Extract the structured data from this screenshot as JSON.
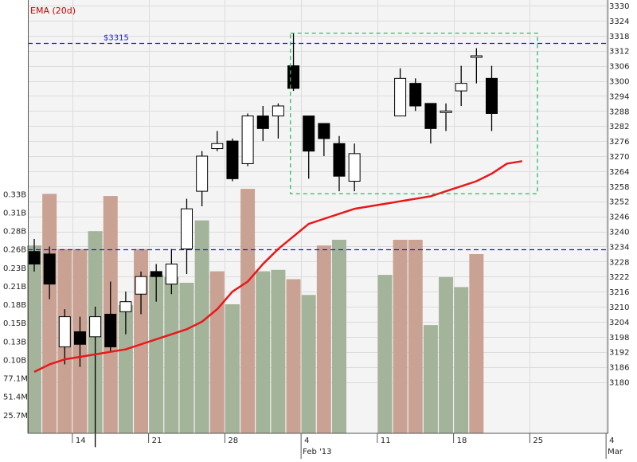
{
  "header": {
    "indicator_label": "EMA (20d)"
  },
  "colors": {
    "background": "#f4f4f4",
    "grid": "#dcdcdc",
    "frame": "#555555",
    "text": "#222222",
    "ema_line": "#e8191b",
    "ema_label": "#cc0000",
    "reference_line": "#1a1ae6",
    "selection_box": "#22c06a",
    "candle_up_fill": "#ffffff",
    "candle_down_fill": "#000000",
    "volume_up": "#a3b49a",
    "volume_down": "#caa293"
  },
  "chart_data": {
    "type": "candlestick",
    "price_axis": {
      "ylim": [
        3174,
        3330
      ],
      "ticks": [
        3180,
        3186,
        3192,
        3198,
        3204,
        3210,
        3216,
        3222,
        3228,
        3234,
        3240,
        3246,
        3252,
        3258,
        3264,
        3270,
        3276,
        3282,
        3288,
        3294,
        3300,
        3306,
        3312,
        3318,
        3324,
        3330
      ]
    },
    "volume_axis": {
      "tick_labels": [
        "25.7M",
        "51.4M",
        "77.1M",
        "0.10B",
        "0.13B",
        "0.15B",
        "0.18B",
        "0.21B",
        "0.23B",
        "0.26B",
        "0.28B",
        "0.31B",
        "0.33B"
      ],
      "tick_values": [
        25.7,
        51.4,
        77.1,
        102.8,
        128.5,
        154.2,
        179.9,
        205.6,
        231.3,
        257.0,
        282.7,
        308.4,
        334.1
      ],
      "unit": "M"
    },
    "x_axis": {
      "tick_labels": [
        "14",
        "21",
        "28",
        "4",
        "11",
        "18",
        "25",
        "4"
      ],
      "tick_slots": [
        3,
        8,
        13,
        18,
        23,
        28,
        33,
        38
      ],
      "period_labels": [
        {
          "text": "Feb '13",
          "slot": 18
        },
        {
          "text": "Mar",
          "slot": 38
        }
      ]
    },
    "series": [
      {
        "name": "EMA (20d)",
        "slot_values": [
          [
            0,
            3184
          ],
          [
            1,
            3187
          ],
          [
            2,
            3189
          ],
          [
            3,
            3190
          ],
          [
            4,
            3191
          ],
          [
            5,
            3192
          ],
          [
            6,
            3193
          ],
          [
            7,
            3195
          ],
          [
            8,
            3197
          ],
          [
            9,
            3199
          ],
          [
            10,
            3201
          ],
          [
            11,
            3204
          ],
          [
            12,
            3209
          ],
          [
            13,
            3216
          ],
          [
            14,
            3220
          ],
          [
            15,
            3227
          ],
          [
            16,
            3233
          ],
          [
            17,
            3238
          ],
          [
            18,
            3243
          ],
          [
            19,
            3245
          ],
          [
            20,
            3247
          ],
          [
            21,
            3249
          ],
          [
            22,
            3250
          ],
          [
            23,
            3251
          ],
          [
            24,
            3252
          ],
          [
            25,
            3253
          ],
          [
            26,
            3254
          ],
          [
            27,
            3256
          ],
          [
            28,
            3258
          ],
          [
            29,
            3260
          ],
          [
            30,
            3263
          ],
          [
            31,
            3267
          ],
          [
            32,
            3268
          ]
        ]
      }
    ],
    "reference_lines": [
      {
        "label": "$3315",
        "value": 3315
      },
      {
        "label": "",
        "value": 3233
      }
    ],
    "selection": {
      "slot_start": 16.8,
      "slot_end": 33.0,
      "price_low": 3255,
      "price_high": 3319
    },
    "candles": [
      {
        "slot": 0,
        "open": 3232,
        "high": 3237,
        "low": 3224,
        "close": 3227
      },
      {
        "slot": 1,
        "open": 3231,
        "high": 3234,
        "low": 3213,
        "close": 3219
      },
      {
        "slot": 2,
        "open": 3194,
        "high": 3209,
        "low": 3187,
        "close": 3206
      },
      {
        "slot": 3,
        "open": 3200,
        "high": 3206,
        "low": 3186,
        "close": 3195
      },
      {
        "slot": 4,
        "open": 3198,
        "high": 3210,
        "low": 3154,
        "close": 3206
      },
      {
        "slot": 5,
        "open": 3207,
        "high": 3220,
        "low": 3192,
        "close": 3194
      },
      {
        "slot": 6,
        "open": 3208,
        "high": 3216,
        "low": 3199,
        "close": 3212
      },
      {
        "slot": 7,
        "open": 3215,
        "high": 3224,
        "low": 3207,
        "close": 3222
      },
      {
        "slot": 8,
        "open": 3224,
        "high": 3227,
        "low": 3212,
        "close": 3222
      },
      {
        "slot": 9,
        "open": 3219,
        "high": 3233,
        "low": 3215,
        "close": 3227
      },
      {
        "slot": 10,
        "open": 3233,
        "high": 3253,
        "low": 3223,
        "close": 3249
      },
      {
        "slot": 11,
        "open": 3256,
        "high": 3272,
        "low": 3250,
        "close": 3270
      },
      {
        "slot": 12,
        "open": 3273,
        "high": 3280,
        "low": 3272,
        "close": 3275
      },
      {
        "slot": 13,
        "open": 3276,
        "high": 3277,
        "low": 3260,
        "close": 3261
      },
      {
        "slot": 14,
        "open": 3267,
        "high": 3287,
        "low": 3266,
        "close": 3286
      },
      {
        "slot": 15,
        "open": 3286,
        "high": 3290,
        "low": 3276,
        "close": 3281
      },
      {
        "slot": 16,
        "open": 3286,
        "high": 3291,
        "low": 3277,
        "close": 3290
      },
      {
        "slot": 17,
        "open": 3306,
        "high": 3319,
        "low": 3296,
        "close": 3297
      },
      {
        "slot": 18,
        "open": 3286,
        "high": 3286,
        "low": 3261,
        "close": 3272
      },
      {
        "slot": 19,
        "open": 3283,
        "high": 3283,
        "low": 3270,
        "close": 3277
      },
      {
        "slot": 20,
        "open": 3275,
        "high": 3278,
        "low": 3256,
        "close": 3262
      },
      {
        "slot": 21,
        "open": 3260,
        "high": 3275,
        "low": 3256,
        "close": 3271
      },
      {
        "slot": 24,
        "open": 3286,
        "high": 3305,
        "low": 3286,
        "close": 3301
      },
      {
        "slot": 25,
        "open": 3299,
        "high": 3301,
        "low": 3288,
        "close": 3290
      },
      {
        "slot": 26,
        "open": 3291,
        "high": 3291,
        "low": 3275,
        "close": 3281
      },
      {
        "slot": 27,
        "open": 3288,
        "high": 3291,
        "low": 3280,
        "close": 3288
      },
      {
        "slot": 28,
        "open": 3296,
        "high": 3306,
        "low": 3290,
        "close": 3299
      },
      {
        "slot": 29,
        "open": 3310,
        "high": 3313,
        "low": 3299,
        "close": 3310
      },
      {
        "slot": 30,
        "open": 3301,
        "high": 3306,
        "low": 3280,
        "close": 3287
      }
    ],
    "volume": [
      {
        "slot": 0,
        "value": 262,
        "direction": "up"
      },
      {
        "slot": 1,
        "value": 334,
        "direction": "down"
      },
      {
        "slot": 2,
        "value": 257,
        "direction": "down"
      },
      {
        "slot": 3,
        "value": 257,
        "direction": "down"
      },
      {
        "slot": 4,
        "value": 282,
        "direction": "up"
      },
      {
        "slot": 5,
        "value": 331,
        "direction": "down"
      },
      {
        "slot": 6,
        "value": 179,
        "direction": "up"
      },
      {
        "slot": 7,
        "value": 257,
        "direction": "down"
      },
      {
        "slot": 8,
        "value": 221,
        "direction": "up"
      },
      {
        "slot": 9,
        "value": 218,
        "direction": "up"
      },
      {
        "slot": 10,
        "value": 210,
        "direction": "up"
      },
      {
        "slot": 11,
        "value": 297,
        "direction": "up"
      },
      {
        "slot": 12,
        "value": 226,
        "direction": "down"
      },
      {
        "slot": 13,
        "value": 180,
        "direction": "up"
      },
      {
        "slot": 14,
        "value": 341,
        "direction": "down"
      },
      {
        "slot": 15,
        "value": 226,
        "direction": "up"
      },
      {
        "slot": 16,
        "value": 228,
        "direction": "up"
      },
      {
        "slot": 17,
        "value": 215,
        "direction": "down"
      },
      {
        "slot": 18,
        "value": 193,
        "direction": "up"
      },
      {
        "slot": 19,
        "value": 262,
        "direction": "down"
      },
      {
        "slot": 20,
        "value": 270,
        "direction": "up"
      },
      {
        "slot": 23,
        "value": 221,
        "direction": "up"
      },
      {
        "slot": 24,
        "value": 270,
        "direction": "down"
      },
      {
        "slot": 25,
        "value": 270,
        "direction": "down"
      },
      {
        "slot": 26,
        "value": 151,
        "direction": "up"
      },
      {
        "slot": 27,
        "value": 218,
        "direction": "up"
      },
      {
        "slot": 28,
        "value": 204,
        "direction": "up"
      },
      {
        "slot": 29,
        "value": 250,
        "direction": "down"
      }
    ]
  }
}
